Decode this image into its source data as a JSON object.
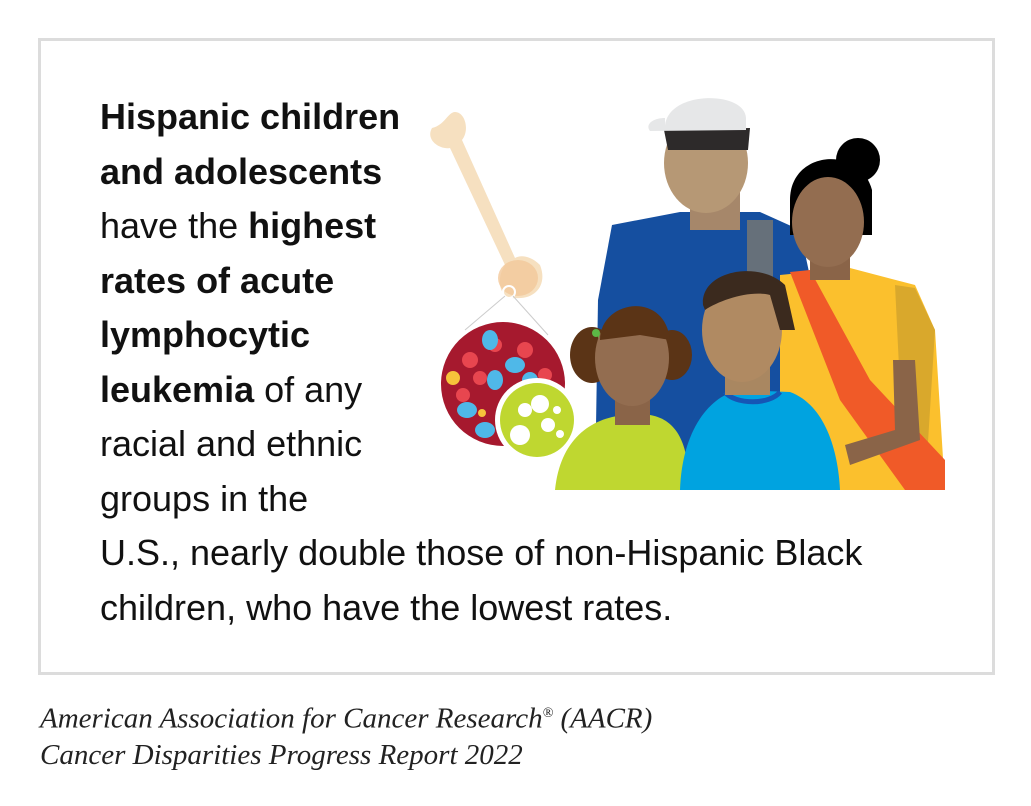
{
  "headline": {
    "l1": "Hispanic children",
    "l2": "and adolescents",
    "l3a": "have the ",
    "l3b": "highest",
    "l4": "rates of acute",
    "l5": "lymphocytic",
    "l6a": "leukemia",
    "l6b": " of any",
    "l7": "racial and ethnic",
    "l8": "groups in the",
    "l9": "U.S., nearly double those of non-Hispanic Black",
    "l10": "children, who have the lowest rates."
  },
  "caption": {
    "line1a": "American Association for Cancer Research",
    "line1reg": "®",
    "line1b": " (AACR)",
    "line2": "Cancer Disparities Progress Report 2022"
  },
  "colors": {
    "man_shirt": "#154fa0",
    "woman_dress": "#fbc02d",
    "sash": "#f05a28",
    "girl_shirt": "#bfd730",
    "boy_shirt": "#00a3e0",
    "marrow": "#a6192e",
    "bone": "#f6e0c0"
  }
}
